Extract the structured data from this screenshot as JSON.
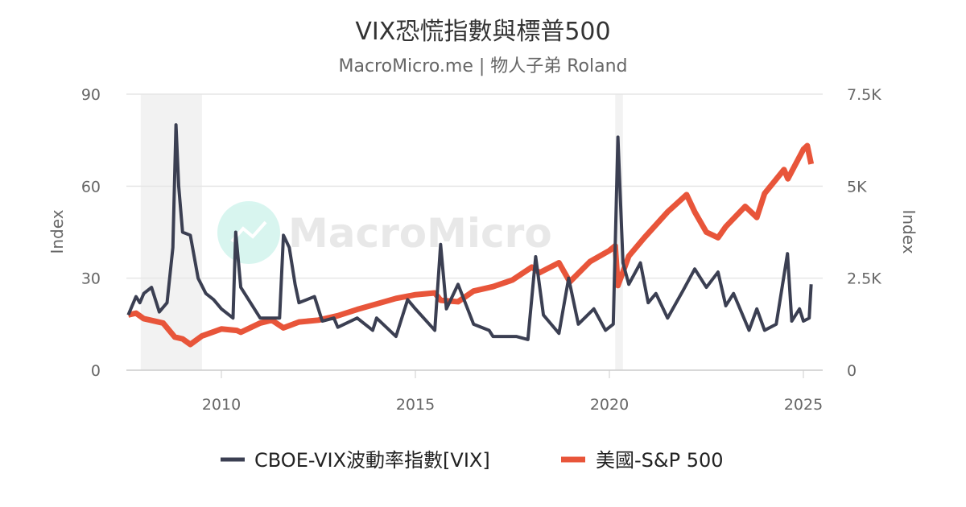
{
  "chart_data": {
    "type": "line",
    "title": "VIX恐慌指數與標普500",
    "subtitle": "MacroMicro.me | 物人子弟 Roland",
    "watermark": "MacroMicro",
    "x_ticks": [
      "2010",
      "2015",
      "2020",
      "2025"
    ],
    "xlim": [
      2007.5,
      2025.3
    ],
    "left_axis": {
      "label": "Index",
      "ticks": [
        "0",
        "30",
        "60",
        "90"
      ],
      "range": [
        0,
        90
      ]
    },
    "right_axis": {
      "label": "Index",
      "ticks": [
        "0",
        "2.5K",
        "5K",
        "7.5K"
      ],
      "range": [
        0,
        7500
      ]
    },
    "grid": true,
    "legend_position": "bottom",
    "shaded_periods": [
      [
        2007.92,
        2009.5
      ],
      [
        2020.15,
        2020.35
      ]
    ],
    "series": [
      {
        "name": "CBOE-VIX波動率指數[VIX]",
        "axis": "left",
        "color": "#3b3f52",
        "points": [
          [
            2007.6,
            18
          ],
          [
            2007.8,
            24
          ],
          [
            2007.9,
            22
          ],
          [
            2008.0,
            25
          ],
          [
            2008.2,
            27
          ],
          [
            2008.4,
            19
          ],
          [
            2008.6,
            22
          ],
          [
            2008.75,
            40
          ],
          [
            2008.83,
            80
          ],
          [
            2008.9,
            60
          ],
          [
            2009.0,
            45
          ],
          [
            2009.2,
            44
          ],
          [
            2009.4,
            30
          ],
          [
            2009.6,
            25
          ],
          [
            2009.8,
            23
          ],
          [
            2010.0,
            20
          ],
          [
            2010.3,
            17
          ],
          [
            2010.37,
            45
          ],
          [
            2010.5,
            27
          ],
          [
            2010.8,
            21
          ],
          [
            2011.0,
            17
          ],
          [
            2011.5,
            17
          ],
          [
            2011.6,
            44
          ],
          [
            2011.75,
            40
          ],
          [
            2011.9,
            28
          ],
          [
            2012.0,
            22
          ],
          [
            2012.4,
            24
          ],
          [
            2012.6,
            16
          ],
          [
            2012.9,
            17
          ],
          [
            2013.0,
            14
          ],
          [
            2013.5,
            17
          ],
          [
            2013.9,
            13
          ],
          [
            2014.0,
            17
          ],
          [
            2014.5,
            11
          ],
          [
            2014.8,
            23
          ],
          [
            2015.0,
            20
          ],
          [
            2015.5,
            13
          ],
          [
            2015.65,
            41
          ],
          [
            2015.8,
            20
          ],
          [
            2016.1,
            28
          ],
          [
            2016.5,
            15
          ],
          [
            2016.9,
            13
          ],
          [
            2017.0,
            11
          ],
          [
            2017.6,
            11
          ],
          [
            2017.9,
            10
          ],
          [
            2018.1,
            37
          ],
          [
            2018.3,
            18
          ],
          [
            2018.7,
            12
          ],
          [
            2018.95,
            30
          ],
          [
            2019.2,
            15
          ],
          [
            2019.6,
            20
          ],
          [
            2019.9,
            13
          ],
          [
            2020.1,
            15
          ],
          [
            2020.22,
            76
          ],
          [
            2020.35,
            35
          ],
          [
            2020.5,
            28
          ],
          [
            2020.8,
            35
          ],
          [
            2021.0,
            22
          ],
          [
            2021.2,
            25
          ],
          [
            2021.5,
            17
          ],
          [
            2021.9,
            26
          ],
          [
            2022.2,
            33
          ],
          [
            2022.5,
            27
          ],
          [
            2022.8,
            32
          ],
          [
            2023.0,
            21
          ],
          [
            2023.2,
            25
          ],
          [
            2023.6,
            13
          ],
          [
            2023.8,
            20
          ],
          [
            2024.0,
            13
          ],
          [
            2024.3,
            15
          ],
          [
            2024.59,
            38
          ],
          [
            2024.7,
            16
          ],
          [
            2024.9,
            20
          ],
          [
            2025.0,
            16
          ],
          [
            2025.15,
            17
          ],
          [
            2025.2,
            28
          ]
        ]
      },
      {
        "name": "美國-S&P 500",
        "axis": "right",
        "color": "#e8553a",
        "points": [
          [
            2007.6,
            1500
          ],
          [
            2007.8,
            1550
          ],
          [
            2008.0,
            1400
          ],
          [
            2008.5,
            1280
          ],
          [
            2008.8,
            900
          ],
          [
            2009.0,
            850
          ],
          [
            2009.2,
            700
          ],
          [
            2009.5,
            930
          ],
          [
            2010.0,
            1120
          ],
          [
            2010.4,
            1080
          ],
          [
            2010.5,
            1030
          ],
          [
            2011.0,
            1280
          ],
          [
            2011.3,
            1360
          ],
          [
            2011.6,
            1150
          ],
          [
            2012.0,
            1310
          ],
          [
            2012.5,
            1360
          ],
          [
            2013.0,
            1480
          ],
          [
            2013.5,
            1650
          ],
          [
            2014.0,
            1800
          ],
          [
            2014.5,
            1950
          ],
          [
            2015.0,
            2050
          ],
          [
            2015.5,
            2100
          ],
          [
            2015.65,
            1900
          ],
          [
            2016.1,
            1860
          ],
          [
            2016.5,
            2150
          ],
          [
            2017.0,
            2270
          ],
          [
            2017.5,
            2450
          ],
          [
            2018.0,
            2800
          ],
          [
            2018.2,
            2650
          ],
          [
            2018.7,
            2920
          ],
          [
            2018.98,
            2400
          ],
          [
            2019.5,
            2950
          ],
          [
            2020.0,
            3250
          ],
          [
            2020.15,
            3380
          ],
          [
            2020.22,
            2300
          ],
          [
            2020.5,
            3100
          ],
          [
            2020.9,
            3600
          ],
          [
            2021.5,
            4300
          ],
          [
            2021.99,
            4770
          ],
          [
            2022.2,
            4300
          ],
          [
            2022.5,
            3750
          ],
          [
            2022.8,
            3600
          ],
          [
            2023.0,
            3900
          ],
          [
            2023.5,
            4450
          ],
          [
            2023.8,
            4150
          ],
          [
            2024.0,
            4800
          ],
          [
            2024.5,
            5450
          ],
          [
            2024.6,
            5200
          ],
          [
            2025.0,
            6000
          ],
          [
            2025.1,
            6100
          ],
          [
            2025.2,
            5600
          ]
        ]
      }
    ]
  }
}
